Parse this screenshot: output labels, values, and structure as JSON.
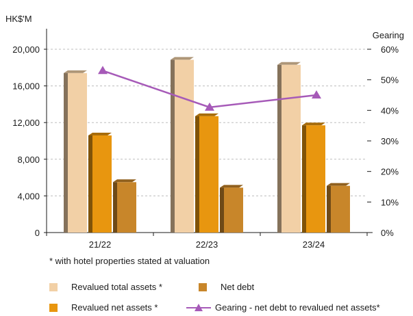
{
  "chart_data": {
    "type": "bar",
    "y_unit_label": "HK$'M",
    "y2_label": "Gearing",
    "categories": [
      "21/22",
      "22/23",
      "23/24"
    ],
    "ylim": [
      0,
      20000
    ],
    "yticks": [
      0,
      4000,
      8000,
      12000,
      16000,
      20000
    ],
    "ytick_labels": [
      "0",
      "4,000",
      "8,000",
      "12,000",
      "16,000",
      "20,000"
    ],
    "y2lim": [
      0,
      60
    ],
    "y2ticks": [
      0,
      10,
      20,
      30,
      40,
      50,
      60
    ],
    "y2tick_labels": [
      "0%",
      "10%",
      "20%",
      "30%",
      "40%",
      "50%",
      "60%"
    ],
    "grid": true,
    "series": [
      {
        "name": "Revalued total assets *",
        "values": [
          17400,
          18850,
          18300
        ],
        "color": "#f2d0a6",
        "axis": "left"
      },
      {
        "name": "Revalued net assets *",
        "values": [
          10600,
          12700,
          11700
        ],
        "color": "#e8960f",
        "axis": "left"
      },
      {
        "name": "Net debt",
        "values": [
          5500,
          4900,
          5100
        ],
        "color": "#c8862a",
        "axis": "left"
      },
      {
        "name": "Gearing - net debt to revalued net assets*",
        "type": "line",
        "values": [
          53,
          41,
          45
        ],
        "color": "#a65ab8",
        "axis": "right",
        "marker": "triangle"
      }
    ],
    "footnote": "* with hotel properties stated at valuation"
  },
  "legend": {
    "total_assets": "Revalued total assets *",
    "net_debt": "Net debt",
    "net_assets": "Revalued net assets *",
    "gearing": "Gearing - net debt to revalued net assets*"
  }
}
